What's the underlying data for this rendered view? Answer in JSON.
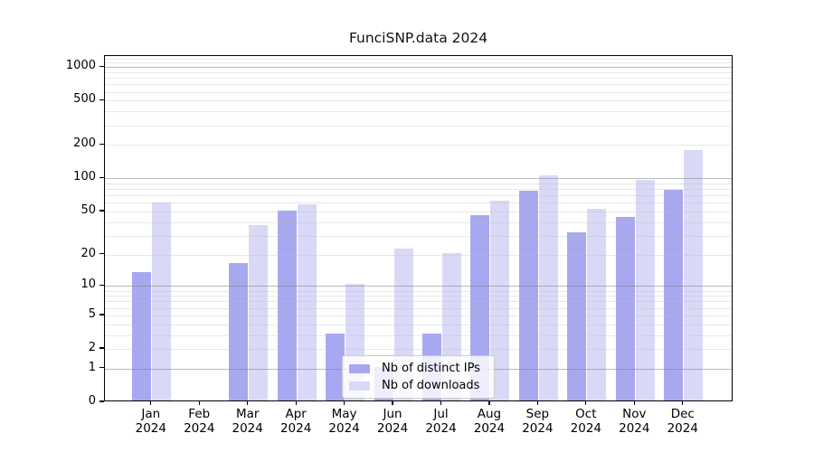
{
  "figure": {
    "title": "FunciSNP.data 2024"
  },
  "chart_data": {
    "type": "bar",
    "title": "FunciSNP.data 2024",
    "x": {
      "months": [
        "Jan",
        "Feb",
        "Mar",
        "Apr",
        "May",
        "Jun",
        "Jul",
        "Aug",
        "Sep",
        "Oct",
        "Nov",
        "Dec"
      ],
      "year": "2024",
      "tick_labels": [
        "Jan 2024",
        "Feb 2024",
        "Mar 2024",
        "Apr 2024",
        "May 2024",
        "Jun 2024",
        "Jul 2024",
        "Aug 2024",
        "Sep 2024",
        "Oct 2024",
        "Nov 2024",
        "Dec 2024"
      ]
    },
    "series": [
      {
        "name": "Nb of distinct IPs",
        "color": "#a8a8f0",
        "values": [
          13,
          0,
          16,
          49,
          3,
          1,
          3,
          45,
          75,
          31,
          43,
          76
        ]
      },
      {
        "name": "Nb of downloads",
        "color": "#d9d9f7",
        "values": [
          58,
          0,
          36,
          56,
          10,
          22,
          20,
          60,
          103,
          51,
          94,
          175
        ]
      }
    ],
    "y_axis": {
      "scale": "log10(1+x)",
      "tick_values": [
        0,
        1,
        2,
        5,
        10,
        20,
        50,
        100,
        200,
        500,
        1000
      ],
      "tick_labels": [
        "0",
        "1",
        "2",
        "5",
        "10",
        "20",
        "50",
        "100",
        "200",
        "500",
        "1000"
      ],
      "ylim": [
        0,
        1260
      ],
      "grid": true,
      "major_grid_at": [
        1,
        10,
        100,
        1000
      ]
    },
    "legend": {
      "position": "lower center, inside plot",
      "entries": [
        "Nb of distinct IPs",
        "Nb of downloads"
      ]
    },
    "colors": {
      "distinct_ips_bar": "#a8a8f0",
      "downloads_bar": "#d9d9f7",
      "major_gridline": "#bbbbbb",
      "minor_gridline": "#e8e8e8",
      "spine": "#000000",
      "legend_border": "#cccccc"
    }
  }
}
